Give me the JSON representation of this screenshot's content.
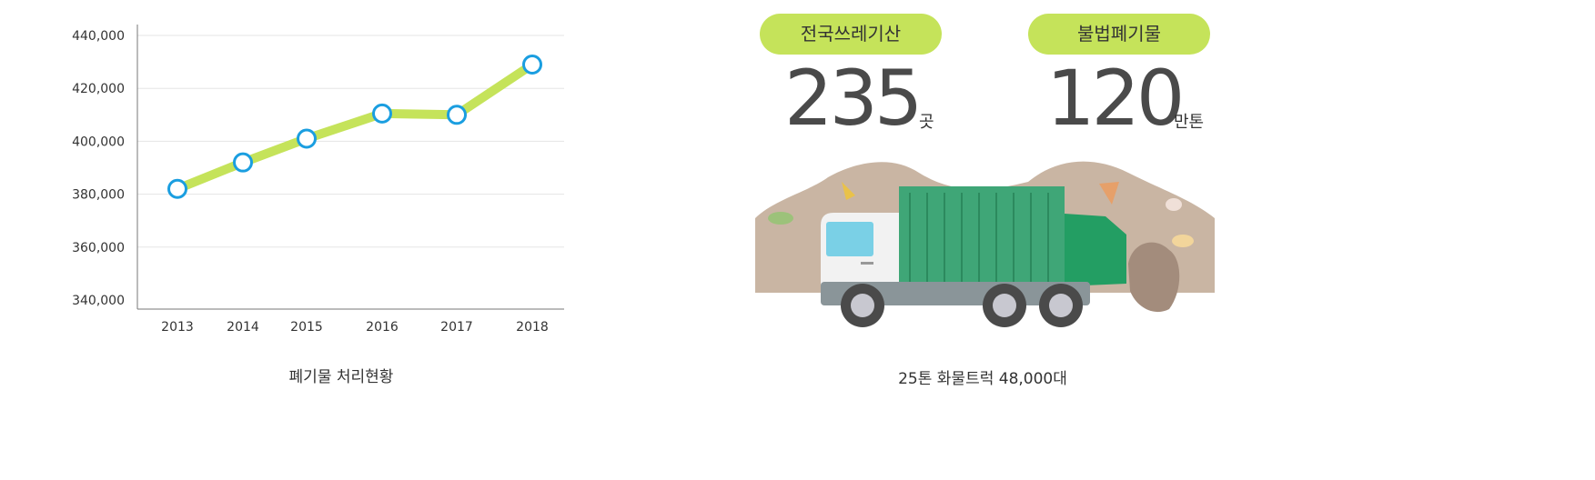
{
  "chart_data": {
    "type": "line",
    "categories": [
      "2013",
      "2014",
      "2015",
      "2016",
      "2017",
      "2018"
    ],
    "values": [
      382000,
      392000,
      401000,
      410500,
      410000,
      429000
    ],
    "ylim": [
      340000,
      440000
    ],
    "yticks": [
      440000,
      420000,
      400000,
      380000,
      360000,
      340000
    ],
    "ytick_labels": [
      "440,000",
      "420,000",
      "400,000",
      "380,000",
      "360,000",
      "340,000"
    ],
    "grid": true,
    "line_color": "#c5e35a",
    "marker_color": "#1a9ee0",
    "title": "폐기물 처리현황"
  },
  "stats": [
    {
      "badge": "전국쓰레기산",
      "value": "235",
      "unit": "곳"
    },
    {
      "badge": "불법폐기물",
      "value": "120",
      "unit": "만톤"
    }
  ],
  "truck": {
    "caption": "25톤 화물트럭 48,000대",
    "icon": "garbage-truck-illustration"
  },
  "colors": {
    "badge_bg": "#c5e35a",
    "number": "#4a4a4a",
    "truck_body": "#3fa677",
    "dirt": "#c9b5a3"
  }
}
